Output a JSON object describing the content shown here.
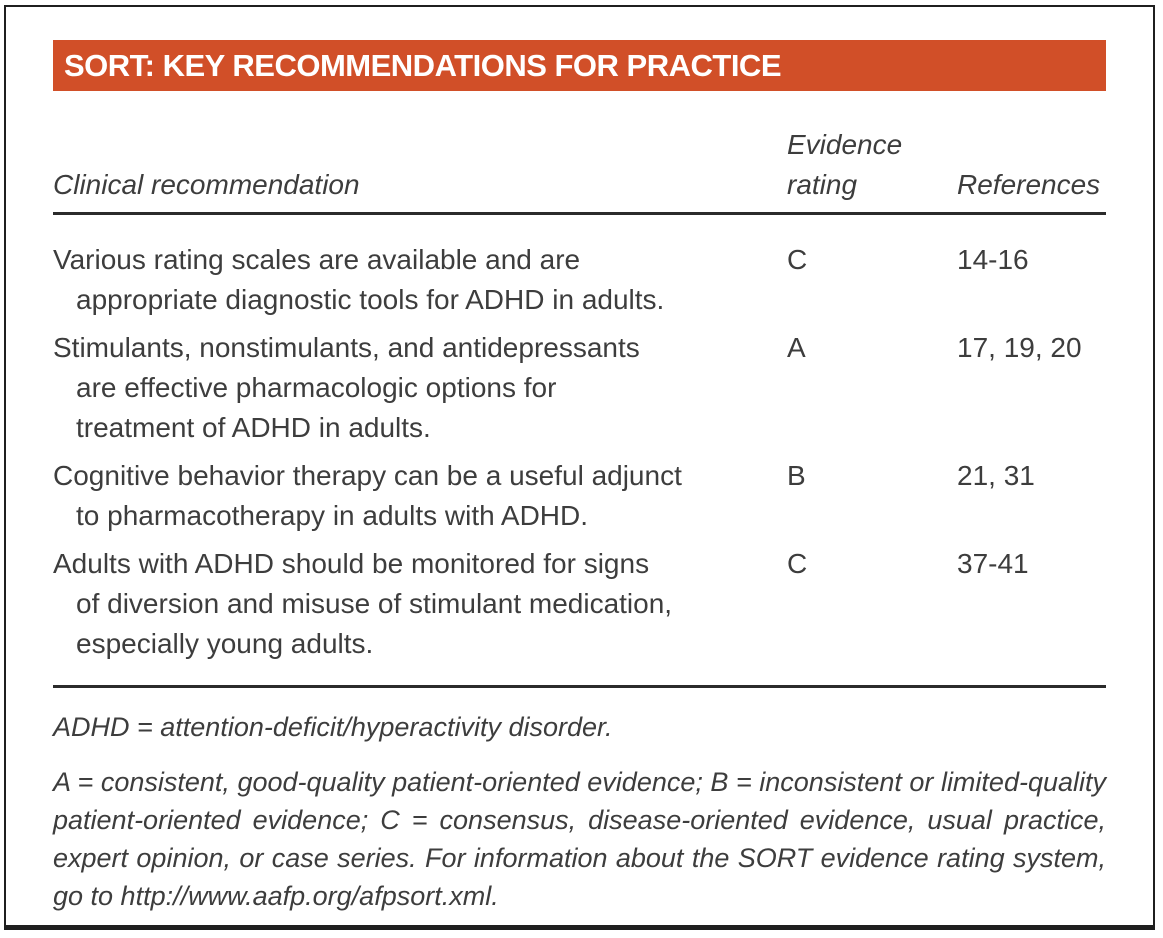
{
  "title_bar": {
    "title": "SORT: KEY RECOMMENDATIONS FOR PRACTICE"
  },
  "table": {
    "headers": {
      "clinical": "Clinical recommendation",
      "evidence": "Evidence rating",
      "references": "References"
    },
    "rows": [
      {
        "recommendation": "Various rating scales are available and are appropriate diagnostic tools for ADHD in adults.",
        "lines": [
          "Various rating scales are available and are",
          "appropriate diagnostic tools for ADHD in adults."
        ],
        "evidence": "C",
        "references": "14-16"
      },
      {
        "recommendation": "Stimulants, nonstimulants, and antidepressants are effective pharmacologic options for treatment of ADHD in adults.",
        "lines": [
          "Stimulants, nonstimulants, and antidepressants",
          "are effective pharmacologic options for",
          "treatment of ADHD in adults."
        ],
        "evidence": "A",
        "references": "17, 19, 20"
      },
      {
        "recommendation": "Cognitive behavior therapy can be a useful adjunct to pharmacotherapy in adults with ADHD.",
        "lines": [
          "Cognitive behavior therapy can be a useful adjunct",
          "to pharmacotherapy in adults with ADHD."
        ],
        "evidence": "B",
        "references": "21, 31"
      },
      {
        "recommendation": "Adults with ADHD should be monitored for signs of diversion and misuse of stimulant medication, especially young adults.",
        "lines": [
          "Adults with ADHD should be monitored for signs",
          "of diversion and misuse of stimulant medication,",
          "especially young adults."
        ],
        "evidence": "C",
        "references": "37-41"
      }
    ]
  },
  "footnotes": {
    "abbreviations": "ADHD = attention-deficit/hyperactivity disorder.",
    "rating_key": "A = consistent, good-quality patient-oriented evidence; B = inconsistent or limited-quality patient-oriented evidence; C = consensus, disease-oriented evidence, usual practice, expert opinion, or case series. For information about the SORT evidence rating system, go to http://www.aafp.org/afpsort.xml."
  },
  "colors": {
    "accent_orange": "#d14f28",
    "title_text": "#ffffff",
    "body_text": "#3d3d3d",
    "rule": "#2b2b2b",
    "frame_border": "#1f1f1f"
  }
}
